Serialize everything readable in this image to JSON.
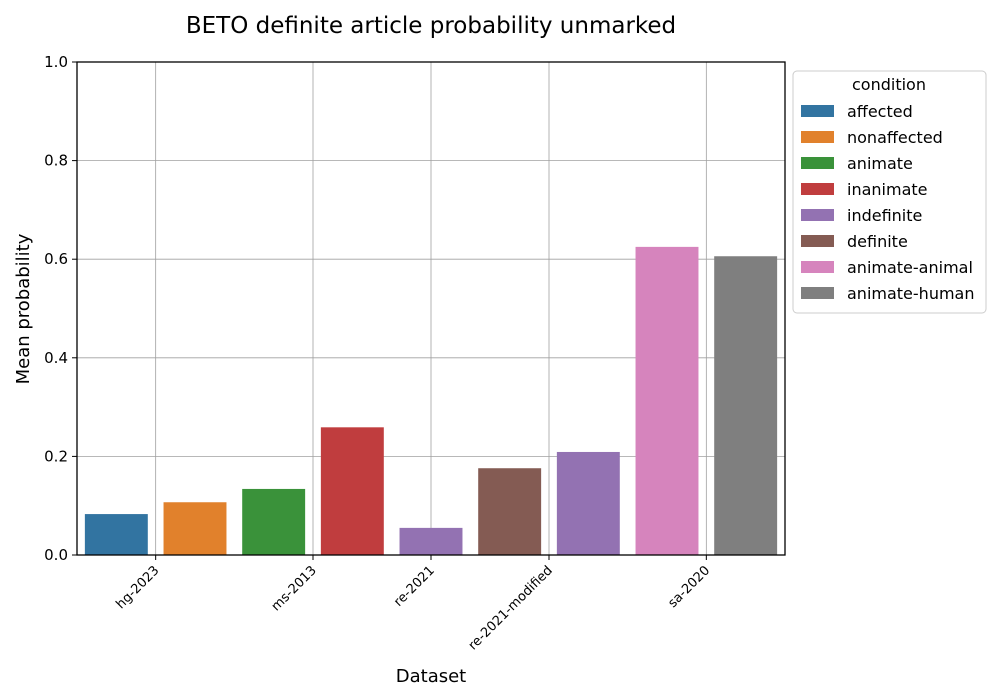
{
  "chart_data": {
    "type": "bar",
    "title": "BETO definite article probability unmarked",
    "xlabel": "Dataset",
    "ylabel": "Mean probability",
    "ylim": [
      0,
      1.0
    ],
    "yticks": [
      "0.0",
      "0.2",
      "0.4",
      "0.6",
      "0.8",
      "1.0"
    ],
    "grid": true,
    "categories": [
      "hg-2023",
      "ms-2013",
      "re-2021",
      "re-2021-modified",
      "sa-2020"
    ],
    "legend": {
      "title": "condition",
      "placement": "outside-right-top"
    },
    "series": [
      {
        "name": "affected",
        "color": "#3274a1"
      },
      {
        "name": "nonaffected",
        "color": "#e1812c"
      },
      {
        "name": "animate",
        "color": "#3a923a"
      },
      {
        "name": "inanimate",
        "color": "#c03d3e"
      },
      {
        "name": "indefinite",
        "color": "#9372b2"
      },
      {
        "name": "definite",
        "color": "#845b53"
      },
      {
        "name": "animate-animal",
        "color": "#d684bd"
      },
      {
        "name": "animate-human",
        "color": "#7f7f7f"
      }
    ],
    "bars": [
      {
        "series": "affected",
        "value": 0.083
      },
      {
        "series": "nonaffected",
        "value": 0.107
      },
      {
        "series": "animate",
        "value": 0.134
      },
      {
        "series": "inanimate",
        "value": 0.259
      },
      {
        "series": "indefinite",
        "value": 0.055
      },
      {
        "series": "definite",
        "value": 0.176
      },
      {
        "series": "indefinite",
        "value": 0.209
      },
      {
        "series": "animate-animal",
        "value": 0.625
      },
      {
        "series": "animate-human",
        "value": 0.606
      }
    ]
  }
}
